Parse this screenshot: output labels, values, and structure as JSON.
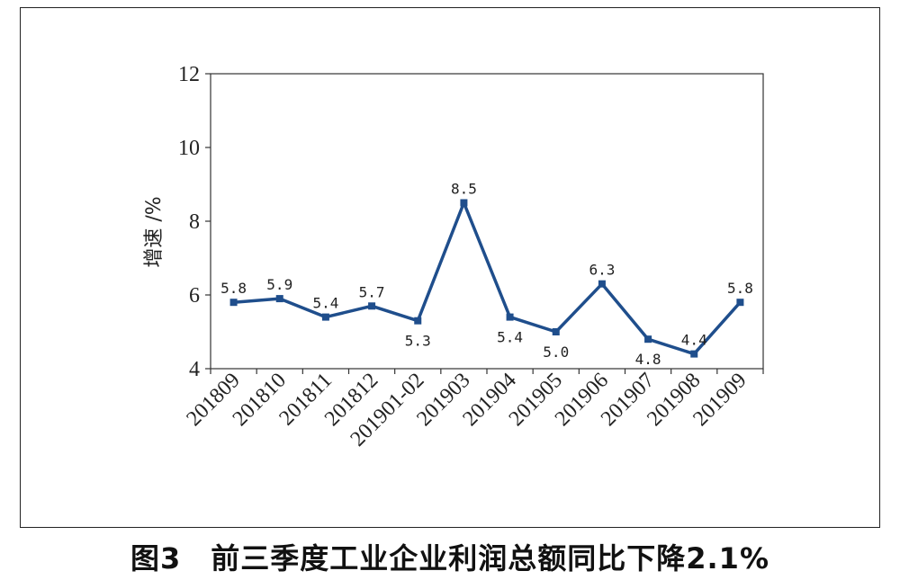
{
  "caption": "图3　前三季度工业企业利润总额同比下降2.1%",
  "chart_data": {
    "type": "line",
    "ylabel": "增速 /%",
    "ylim": [
      4,
      12
    ],
    "yticks": [
      4,
      6,
      8,
      10,
      12
    ],
    "categories": [
      "201809",
      "201810",
      "201811",
      "201812",
      "201901-02",
      "201903",
      "201904",
      "201905",
      "201906",
      "201907",
      "201908",
      "201909"
    ],
    "values": [
      5.8,
      5.9,
      5.4,
      5.7,
      5.3,
      8.5,
      5.4,
      5.0,
      6.3,
      4.8,
      4.4,
      5.8
    ],
    "data_labels": [
      "5.8",
      "5.9",
      "5.4",
      "5.7",
      "5.3",
      "8.5",
      "5.4",
      "5.0",
      "6.3",
      "4.8",
      "4.4",
      "5.8"
    ],
    "line_color": "#1f4e8c",
    "grid": false,
    "legend": "none"
  }
}
